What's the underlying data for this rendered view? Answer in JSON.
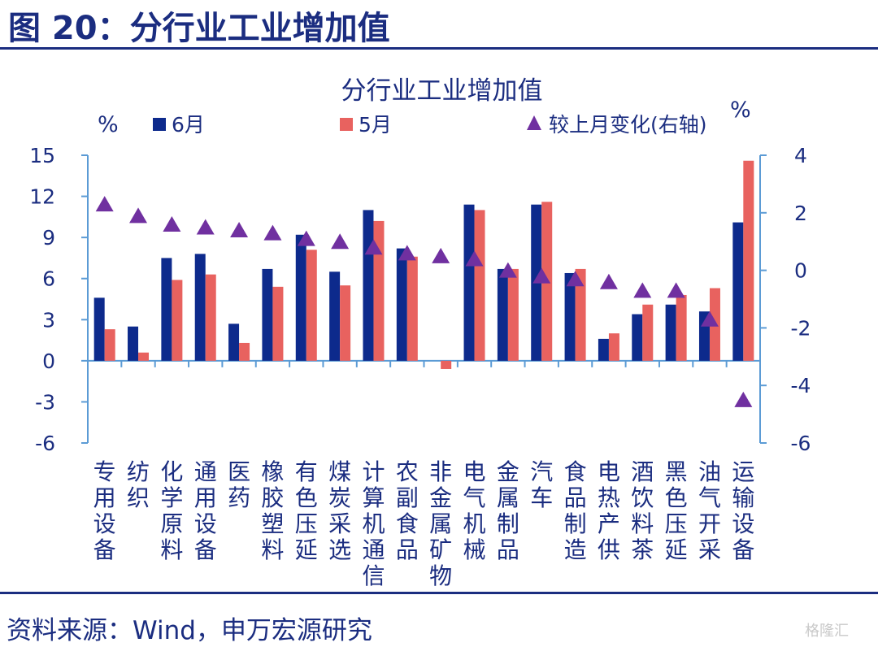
{
  "figure": {
    "title": "图 20：分行业工业增加值",
    "source": "资料来源：Wind，申万宏源研究",
    "watermark": "格隆汇"
  },
  "colors": {
    "june": "#0d2a8c",
    "may": "#e8625f",
    "change": "#7030a0",
    "axis": "#5b9bd5",
    "title_blue": "#1b2d80"
  },
  "chart_data": {
    "type": "bar",
    "title": "分行业工业增加值",
    "ylabel_left": "%",
    "ylabel_right": "%",
    "ylim": [
      -6,
      15
    ],
    "yticks": [
      15,
      12,
      9,
      6,
      3,
      0,
      -3,
      -6
    ],
    "ylim_right": [
      -6,
      4
    ],
    "yticks_right": [
      4,
      2,
      0,
      -2,
      -4,
      -6
    ],
    "legend": {
      "position": "top",
      "entries": [
        "6月",
        "5月",
        "较上月变化(右轴)"
      ]
    },
    "categories": [
      "专用设备",
      "纺织",
      "化学原料",
      "通用设备",
      "医药",
      "橡胶塑料",
      "有色压延",
      "煤炭采选",
      "计算机通信",
      "农副食品",
      "非金属矿物",
      "电气机械",
      "金属制品",
      "汽车",
      "食品制造",
      "电热产供",
      "酒饮料茶",
      "黑色压延",
      "油气开采",
      "运输设备"
    ],
    "series": [
      {
        "name": "6月",
        "type": "bar",
        "axis": "left",
        "values": [
          4.6,
          2.5,
          7.5,
          7.8,
          2.7,
          6.7,
          9.2,
          6.5,
          11.0,
          8.2,
          0.0,
          11.4,
          6.7,
          11.4,
          6.4,
          1.6,
          3.4,
          4.1,
          3.6,
          10.1
        ]
      },
      {
        "name": "5月",
        "type": "bar",
        "axis": "left",
        "values": [
          2.3,
          0.6,
          5.9,
          6.3,
          1.3,
          5.4,
          8.1,
          5.5,
          10.2,
          7.6,
          -0.6,
          11.0,
          6.7,
          11.6,
          6.7,
          2.0,
          4.1,
          4.8,
          5.3,
          14.6
        ]
      },
      {
        "name": "较上月变化(右轴)",
        "type": "scatter",
        "marker": "triangle",
        "axis": "right",
        "values": [
          2.3,
          1.9,
          1.6,
          1.5,
          1.4,
          1.3,
          1.1,
          1.0,
          0.8,
          0.6,
          0.5,
          0.4,
          0.0,
          -0.2,
          -0.3,
          -0.4,
          -0.7,
          -0.7,
          -1.7,
          -4.5
        ]
      }
    ]
  }
}
